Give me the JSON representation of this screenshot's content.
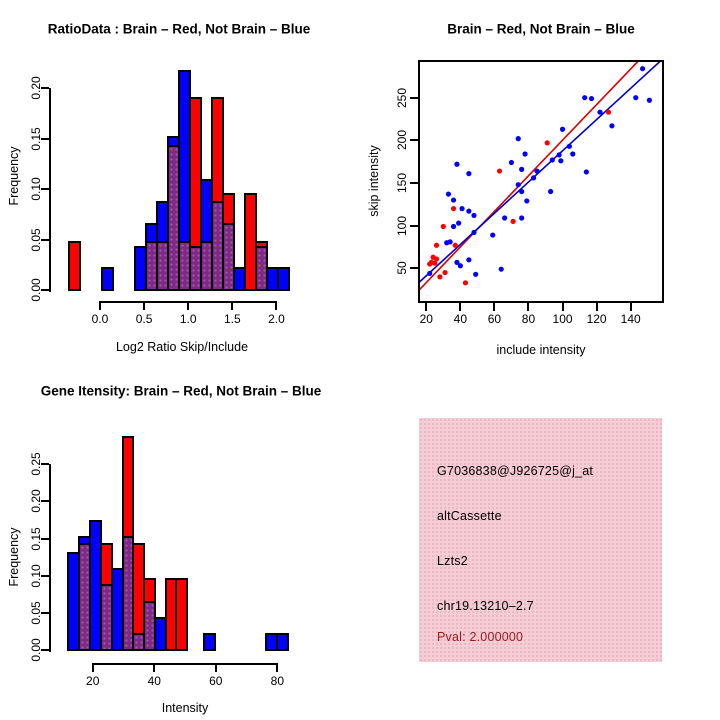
{
  "colors": {
    "red": "#FF0000",
    "blue": "#0000FF",
    "purple": "#7D2A87",
    "red_line": "#DD0000",
    "blue_line": "#0000CC",
    "dark_red": "#9B1C1C",
    "pink_bg": "#F4CDD5",
    "black": "#000000"
  },
  "chart_data": [
    {
      "id": "ratio_histogram",
      "type": "histogram-overlay",
      "title": "RatioData : Brain – Red, Not Brain – Blue",
      "xlabel": "Log2 Ratio Skip/Include",
      "ylabel": "Frequency",
      "legend_note": "red = Brain, blue = Not Brain, purple = overlap",
      "xlim": [
        -0.45,
        2.25
      ],
      "ylim": [
        0,
        0.22
      ],
      "x_ticks": [
        0.0,
        0.5,
        1.0,
        1.5,
        2.0
      ],
      "x_tick_labels": [
        "0.0",
        "0.5",
        "1.0",
        "1.5",
        "2.0"
      ],
      "y_ticks": [
        0.0,
        0.05,
        0.1,
        0.15,
        0.2
      ],
      "y_tick_labels": [
        "0.00",
        "0.05",
        "0.10",
        "0.15",
        "0.20"
      ],
      "bars": [
        {
          "x0": -0.355,
          "x1": -0.23,
          "blue": 0,
          "red": 0.048
        },
        {
          "x0": 0.02,
          "x1": 0.145,
          "blue": 0.022,
          "red": 0
        },
        {
          "x0": 0.395,
          "x1": 0.52,
          "blue": 0.043,
          "red": 0
        },
        {
          "x0": 0.52,
          "x1": 0.645,
          "blue": 0.065,
          "red": 0.048
        },
        {
          "x0": 0.645,
          "x1": 0.77,
          "blue": 0.087,
          "red": 0.048
        },
        {
          "x0": 0.77,
          "x1": 0.895,
          "blue": 0.152,
          "red": 0.143
        },
        {
          "x0": 0.895,
          "x1": 1.02,
          "blue": 0.217,
          "red": 0.048
        },
        {
          "x0": 1.02,
          "x1": 1.145,
          "blue": 0.043,
          "red": 0.19
        },
        {
          "x0": 1.145,
          "x1": 1.27,
          "blue": 0.109,
          "red": 0.048
        },
        {
          "x0": 1.27,
          "x1": 1.395,
          "blue": 0.087,
          "red": 0.19
        },
        {
          "x0": 1.395,
          "x1": 1.52,
          "blue": 0.065,
          "red": 0.095
        },
        {
          "x0": 1.52,
          "x1": 1.645,
          "blue": 0.022,
          "red": 0
        },
        {
          "x0": 1.645,
          "x1": 1.77,
          "blue": 0,
          "red": 0.095
        },
        {
          "x0": 1.77,
          "x1": 1.895,
          "blue": 0.043,
          "red": 0.048
        },
        {
          "x0": 1.895,
          "x1": 2.02,
          "blue": 0.022,
          "red": 0
        },
        {
          "x0": 2.02,
          "x1": 2.145,
          "blue": 0.022,
          "red": 0
        }
      ]
    },
    {
      "id": "intensity_scatter",
      "type": "scatter",
      "title": "Brain – Red, Not Brain – Blue",
      "xlabel": "include intensity",
      "ylabel": "skip intensity",
      "xlim": [
        16,
        158
      ],
      "ylim": [
        12,
        293
      ],
      "x_ticks": [
        20,
        40,
        60,
        80,
        100,
        120,
        140
      ],
      "x_tick_labels": [
        "20",
        "40",
        "60",
        "80",
        "100",
        "120",
        "140"
      ],
      "y_ticks": [
        50,
        100,
        150,
        200,
        250
      ],
      "y_tick_labels": [
        "50",
        "100",
        "150",
        "200",
        "250"
      ],
      "blue_points": [
        [
          22,
          44
        ],
        [
          32,
          80
        ],
        [
          34,
          81
        ],
        [
          38,
          57
        ],
        [
          40,
          53
        ],
        [
          45,
          60
        ],
        [
          49,
          43
        ],
        [
          64,
          49
        ],
        [
          36,
          99
        ],
        [
          39,
          103
        ],
        [
          48,
          92
        ],
        [
          59,
          89
        ],
        [
          48,
          112
        ],
        [
          45,
          117
        ],
        [
          41,
          120
        ],
        [
          66,
          109
        ],
        [
          76,
          109
        ],
        [
          33,
          137
        ],
        [
          36,
          130
        ],
        [
          38,
          172
        ],
        [
          45,
          161
        ],
        [
          74,
          148
        ],
        [
          76,
          140
        ],
        [
          79,
          129
        ],
        [
          93,
          140
        ],
        [
          70,
          174
        ],
        [
          76,
          166
        ],
        [
          83,
          156
        ],
        [
          85,
          164
        ],
        [
          94,
          177
        ],
        [
          99,
          176
        ],
        [
          74,
          202
        ],
        [
          78,
          184
        ],
        [
          98,
          183
        ],
        [
          104,
          193
        ],
        [
          106,
          184
        ],
        [
          100,
          213
        ],
        [
          114,
          163
        ],
        [
          122,
          233
        ],
        [
          129,
          217
        ],
        [
          113,
          250
        ],
        [
          117,
          249
        ],
        [
          143,
          250
        ],
        [
          151,
          247
        ],
        [
          147,
          284
        ]
      ],
      "red_points": [
        [
          22,
          55
        ],
        [
          23,
          57
        ],
        [
          25,
          56
        ],
        [
          26,
          61
        ],
        [
          24,
          63
        ],
        [
          26,
          77
        ],
        [
          37,
          77
        ],
        [
          30,
          99
        ],
        [
          28,
          40
        ],
        [
          31,
          45
        ],
        [
          43,
          33
        ],
        [
          36,
          120
        ],
        [
          63,
          164
        ],
        [
          71,
          105
        ],
        [
          91,
          197
        ],
        [
          127,
          233
        ]
      ],
      "red_line": {
        "x1": 16,
        "y1": 25,
        "x2": 144.5,
        "y2": 293
      },
      "blue_line": {
        "x1": 16,
        "y1": 34,
        "x2": 157.5,
        "y2": 293
      }
    },
    {
      "id": "gene_intensity_histogram",
      "type": "histogram-overlay",
      "title": "Gene Itensity: Brain – Red, Not Brain – Blue",
      "xlabel": "Intensity",
      "ylabel": "Frequency",
      "legend_note": "red = Brain, blue = Not Brain, purple = overlap",
      "xlim": [
        9,
        86
      ],
      "ylim": [
        0,
        0.29
      ],
      "x_ticks": [
        20,
        40,
        60,
        80
      ],
      "x_tick_labels": [
        "20",
        "40",
        "60",
        "80"
      ],
      "y_ticks": [
        0.0,
        0.05,
        0.1,
        0.15,
        0.2,
        0.25
      ],
      "y_tick_labels": [
        "0.00",
        "0.05",
        "0.10",
        "0.15",
        "0.20",
        "0.25"
      ],
      "bars": [
        {
          "x0": 12.1,
          "x1": 15.6,
          "blue": 0.13,
          "red": 0
        },
        {
          "x0": 15.6,
          "x1": 19.1,
          "blue": 0.152,
          "red": 0.143
        },
        {
          "x0": 19.1,
          "x1": 22.7,
          "blue": 0.174,
          "red": 0
        },
        {
          "x0": 22.7,
          "x1": 26.2,
          "blue": 0.087,
          "red": 0.143
        },
        {
          "x0": 26.2,
          "x1": 29.7,
          "blue": 0.109,
          "red": 0
        },
        {
          "x0": 29.7,
          "x1": 33.2,
          "blue": 0.152,
          "red": 0.286
        },
        {
          "x0": 33.2,
          "x1": 36.7,
          "blue": 0.022,
          "red": 0.143
        },
        {
          "x0": 36.7,
          "x1": 40.2,
          "blue": 0.065,
          "red": 0.095
        },
        {
          "x0": 40.2,
          "x1": 43.7,
          "blue": 0.043,
          "red": 0
        },
        {
          "x0": 43.7,
          "x1": 47.2,
          "blue": 0,
          "red": 0.095
        },
        {
          "x0": 47.2,
          "x1": 50.7,
          "blue": 0,
          "red": 0.095
        },
        {
          "x0": 56.1,
          "x1": 59.6,
          "blue": 0.022,
          "red": 0
        },
        {
          "x0": 76.4,
          "x1": 79.9,
          "blue": 0.022,
          "red": 0
        },
        {
          "x0": 79.9,
          "x1": 83.4,
          "blue": 0.022,
          "red": 0
        }
      ]
    },
    {
      "id": "gene_info_panel",
      "type": "text-panel",
      "lines": [
        {
          "text": "G7036838@J926725@j_at",
          "color_key": "black"
        },
        {
          "text": "altCassette",
          "color_key": "black"
        },
        {
          "text": "Lzts2",
          "color_key": "black"
        },
        {
          "text": "chr19.13210–2.7",
          "color_key": "black"
        },
        {
          "text": "Pval: 2.000000",
          "color_key": "dark_red"
        }
      ]
    }
  ]
}
